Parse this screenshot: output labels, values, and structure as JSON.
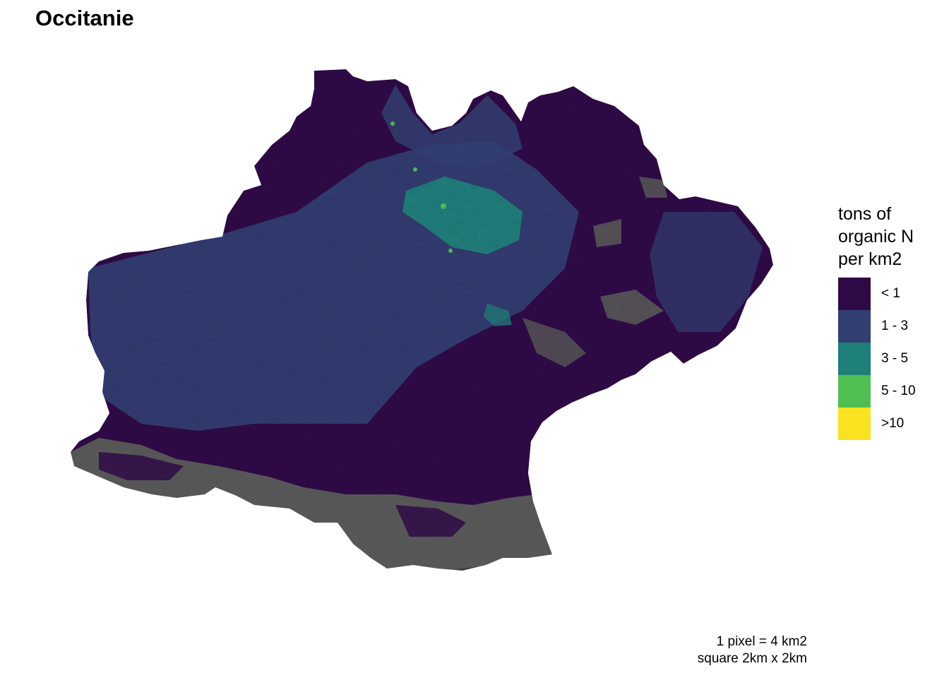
{
  "map": {
    "title": "Occitanie",
    "nodata_color": "#585858",
    "legend": {
      "title_lines": [
        "tons of",
        "organic N",
        "per km2"
      ],
      "items": [
        {
          "label": "< 1",
          "color": "#2e0a46"
        },
        {
          "label": "1 - 3",
          "color": "#323f72"
        },
        {
          "label": "3 - 5",
          "color": "#1f7f79"
        },
        {
          "label": "5 - 10",
          "color": "#4fbf51"
        },
        {
          "label": ">10",
          "color": "#f9e21f"
        }
      ]
    },
    "caption_lines": [
      "1 pixel = 4 km2",
      "square 2km x 2km"
    ]
  }
}
